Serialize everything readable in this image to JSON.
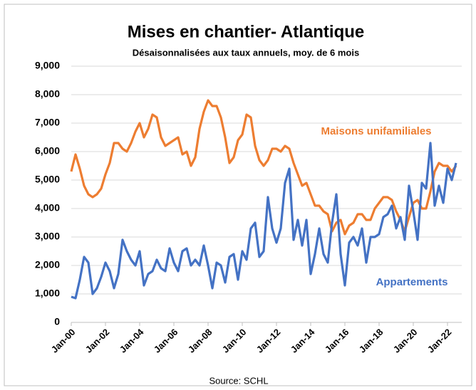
{
  "chart_data": {
    "type": "line",
    "title": "Mises en chantier- Atlantique",
    "subtitle": "Désaisonnalisées aux taux annuels, moy. de 6 mois",
    "source": "Source: SCHL",
    "categories": [
      "Jan-00",
      null,
      null,
      null,
      null,
      null,
      null,
      null,
      "Jan-02",
      null,
      null,
      null,
      null,
      null,
      null,
      null,
      "Jan-04",
      null,
      null,
      null,
      null,
      null,
      null,
      null,
      "Jan-06",
      null,
      null,
      null,
      null,
      null,
      null,
      null,
      "Jan-08",
      null,
      null,
      null,
      null,
      null,
      null,
      null,
      "Jan-10",
      null,
      null,
      null,
      null,
      null,
      null,
      null,
      "Jan-12",
      null,
      null,
      null,
      null,
      null,
      null,
      null,
      "Jan-14",
      null,
      null,
      null,
      null,
      null,
      null,
      null,
      "Jan-16",
      null,
      null,
      null,
      null,
      null,
      null,
      null,
      "Jan-18",
      null,
      null,
      null,
      null,
      null,
      null,
      null,
      "Jan-20",
      null,
      null,
      null,
      null,
      null,
      null,
      null,
      "Jan-22",
      null,
      null
    ],
    "series": [
      {
        "name": "Maisons unifamiliales",
        "color": "#ed7d31",
        "values": [
          5300,
          5900,
          5400,
          4800,
          4500,
          4400,
          4500,
          4700,
          5200,
          5600,
          6300,
          6300,
          6100,
          6000,
          6300,
          6700,
          7000,
          6500,
          6800,
          7300,
          7200,
          6500,
          6200,
          6300,
          6400,
          6500,
          5900,
          6000,
          5500,
          5800,
          6800,
          7400,
          7800,
          7600,
          7600,
          7200,
          6500,
          5600,
          5800,
          6400,
          6600,
          7300,
          7200,
          6200,
          5700,
          5500,
          5700,
          6100,
          6100,
          6000,
          6200,
          6100,
          5600,
          5200,
          4800,
          4900,
          4500,
          4100,
          4100,
          3900,
          3800,
          3200,
          3500,
          3600,
          3100,
          3400,
          3500,
          3800,
          3800,
          3600,
          3600,
          4000,
          4200,
          4400,
          4400,
          4300,
          3900,
          3600,
          3200,
          3700,
          4200,
          4300,
          4000,
          4000,
          4600,
          5300,
          5600,
          5500,
          5500,
          5300,
          5500
        ]
      },
      {
        "name": "Appartements",
        "color": "#4472c4",
        "values": [
          900,
          850,
          1500,
          2300,
          2100,
          1000,
          1200,
          1600,
          2100,
          1800,
          1200,
          1700,
          2900,
          2500,
          2200,
          2000,
          2500,
          1300,
          1700,
          1800,
          2200,
          1900,
          1800,
          2600,
          2100,
          1800,
          2500,
          2600,
          2000,
          2200,
          2000,
          2700,
          2000,
          1200,
          2100,
          2000,
          1400,
          2300,
          2400,
          1500,
          2500,
          2200,
          3300,
          3500,
          2300,
          2500,
          4400,
          3300,
          2800,
          3300,
          4900,
          5400,
          2900,
          3600,
          2700,
          3600,
          1700,
          2400,
          3300,
          2400,
          2100,
          3500,
          4500,
          2400,
          1300,
          2800,
          3000,
          2700,
          3300,
          2100,
          3000,
          3000,
          3100,
          3700,
          3800,
          4100,
          3300,
          3700,
          2900,
          4800,
          3900,
          2900,
          4900,
          4700,
          6300,
          4100,
          4800,
          4200,
          5400,
          5000,
          5600
        ]
      }
    ],
    "ylim": [
      0,
      9000
    ],
    "yticks": [
      0,
      {
        "value": 1000,
        "label": "1,000"
      },
      {
        "value": 2000,
        "label": "2,000"
      },
      {
        "value": 3000,
        "label": "3,000"
      },
      {
        "value": 4000,
        "label": "4,000"
      },
      {
        "value": 5000,
        "label": "5,000"
      },
      {
        "value": 6000,
        "label": "6,000"
      },
      {
        "value": 7000,
        "label": "7,000"
      },
      {
        "value": 8000,
        "label": "8,000"
      },
      {
        "value": 9000,
        "label": "9,000"
      }
    ],
    "grid": true
  }
}
